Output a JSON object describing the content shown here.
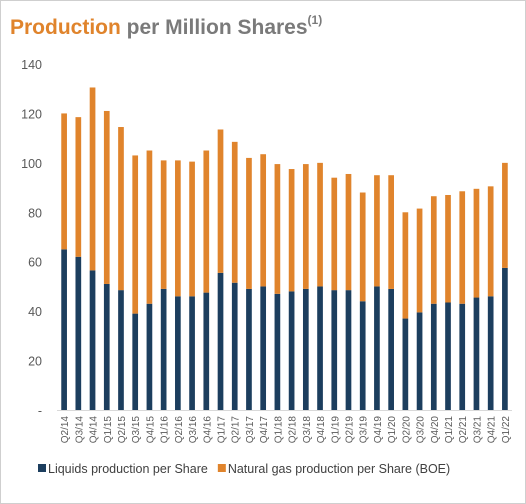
{
  "title": {
    "accent": "Production",
    "rest": " per Million Shares",
    "footnote": "(1)"
  },
  "colors": {
    "liquids": "#1c3e5e",
    "gas": "#e0842c",
    "axis_text": "#595959",
    "grid": "#d9d9d9"
  },
  "chart_data": {
    "type": "bar",
    "stacked": true,
    "title": "Production per Million Shares(1)",
    "categories": [
      "Q2/14",
      "Q3/14",
      "Q4/14",
      "Q1/15",
      "Q2/15",
      "Q3/15",
      "Q4/15",
      "Q1/16",
      "Q2/16",
      "Q3/16",
      "Q4/16",
      "Q1/17",
      "Q2/17",
      "Q3/17",
      "Q4/17",
      "Q1/18",
      "Q2/18",
      "Q3/18",
      "Q4/18",
      "Q1/19",
      "Q2/19",
      "Q3/19",
      "Q4/19",
      "Q1/20",
      "Q2/20",
      "Q3/20",
      "Q4/20",
      "Q1/21",
      "Q2/21",
      "Q3/21",
      "Q4/21",
      "Q1/22"
    ],
    "series": [
      {
        "name": "Liquids production per Share",
        "color": "#1c3e5e",
        "values": [
          65,
          62,
          56.5,
          51,
          48.5,
          39,
          43,
          49,
          46,
          46,
          47.5,
          55.5,
          51.5,
          49,
          50,
          47,
          48,
          49,
          50,
          48.5,
          48.5,
          44,
          50,
          49,
          37,
          39.5,
          43,
          43.5,
          43,
          45.5,
          46,
          57.5
        ]
      },
      {
        "name": "Natural gas production per Share (BOE)",
        "color": "#e0842c",
        "values": [
          55,
          56.5,
          74,
          70,
          66,
          64,
          62,
          52,
          55,
          54.5,
          57.5,
          58,
          57,
          53,
          53.5,
          52.5,
          49.5,
          50.5,
          50,
          45.5,
          47,
          44,
          45,
          46,
          43,
          42,
          43.5,
          43.5,
          45.5,
          44,
          44.5,
          42.5
        ]
      }
    ],
    "y_tick_labels": [
      "-",
      "20",
      "40",
      "60",
      "80",
      "100",
      "120",
      "140"
    ],
    "ylim": [
      0,
      140
    ],
    "grid": false,
    "legend_position": "bottom"
  }
}
